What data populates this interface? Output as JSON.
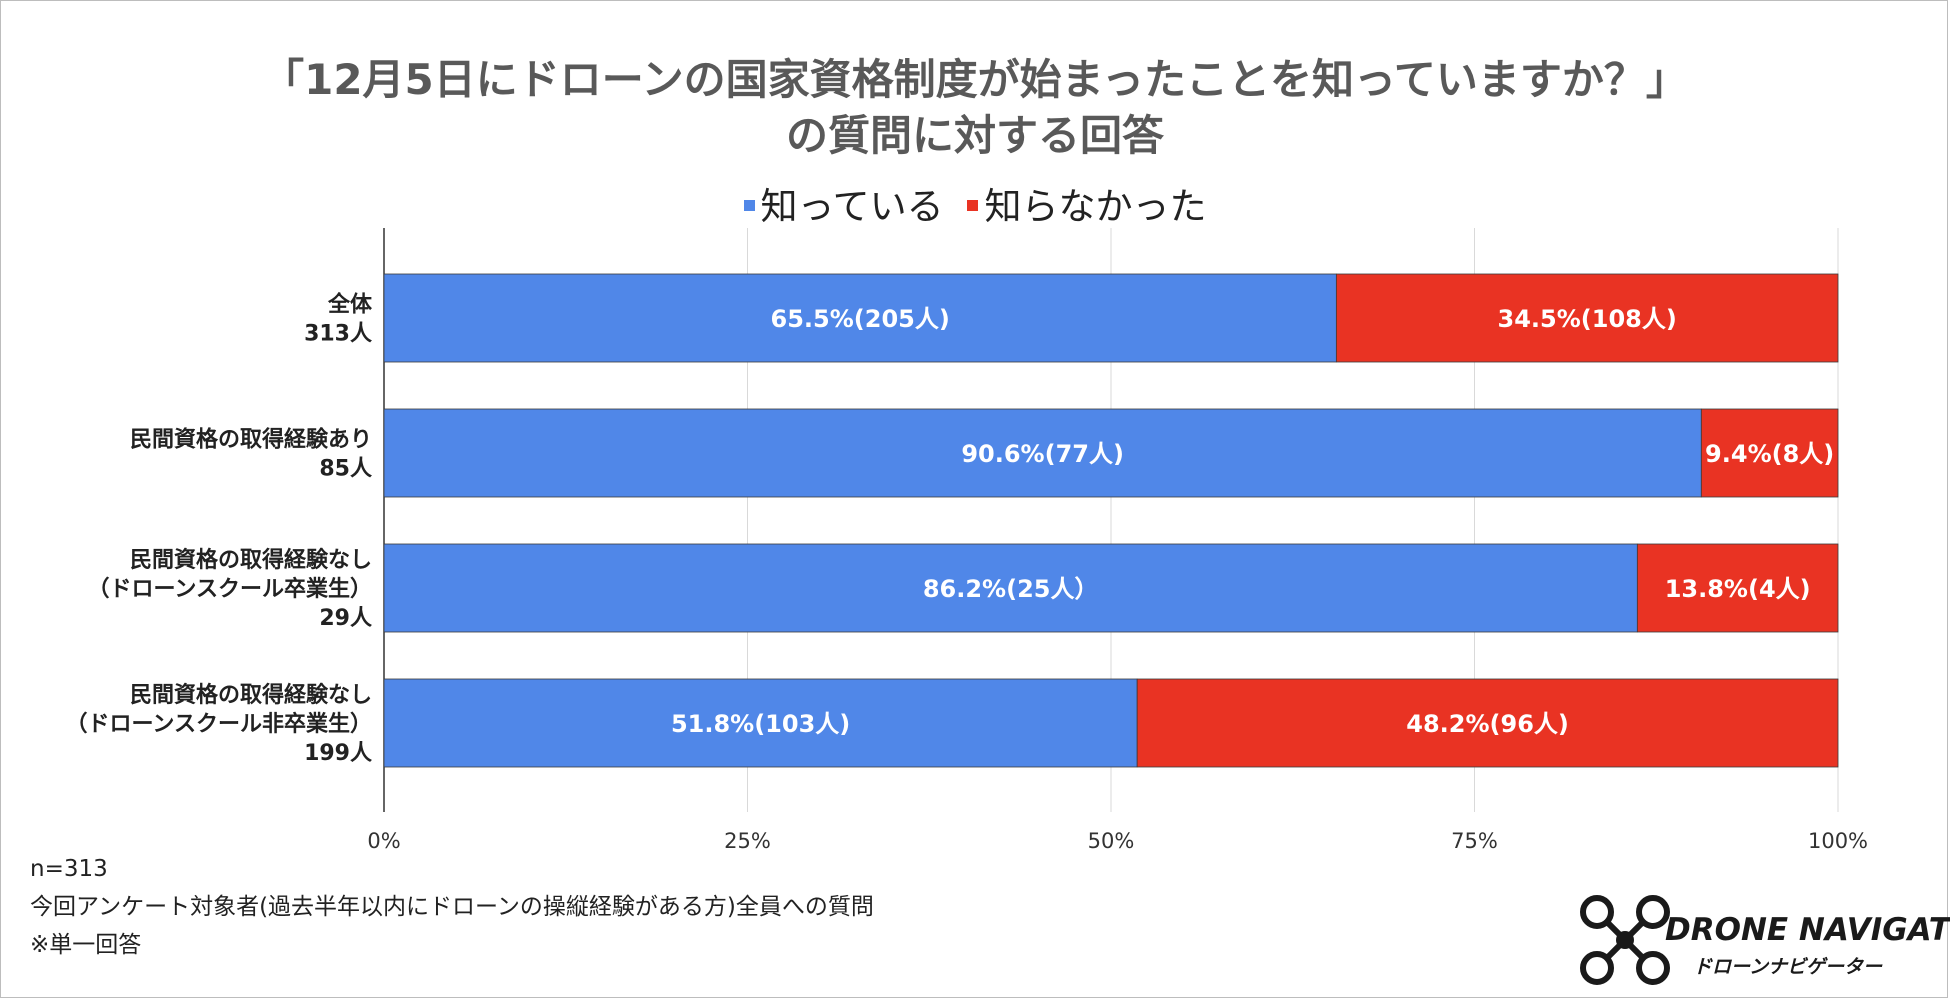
{
  "chart_data": {
    "type": "bar",
    "orientation": "horizontal",
    "stacked": true,
    "title": "「12月5日にドローンの国家資格制度が始まったことを知っていますか？」の質問に対する回答",
    "title_lines": [
      "「12月5日にドローンの国家資格制度が始まったことを知っていますか？」",
      "の質問に対する回答"
    ],
    "legend_position": "top",
    "grid": true,
    "xlim": [
      0,
      100
    ],
    "x_ticks": [
      "0%",
      "25%",
      "50%",
      "75%",
      "100%"
    ],
    "categories": [
      {
        "lines": [
          "全体",
          "313人"
        ]
      },
      {
        "lines": [
          "民間資格の取得経験あり",
          "85人"
        ]
      },
      {
        "lines": [
          "民間資格の取得経験なし",
          "（ドローンスクール卒業生）",
          "29人"
        ]
      },
      {
        "lines": [
          "民間資格の取得経験なし",
          "（ドローンスクール非卒業生）",
          "199人"
        ]
      }
    ],
    "series": [
      {
        "name": "知っている",
        "color": "#5087e8",
        "values": [
          65.5,
          90.6,
          86.2,
          51.8
        ],
        "labels": [
          "65.5%(205人)",
          "90.6%(77人)",
          "86.2%(25人）",
          "51.8%(103人)"
        ]
      },
      {
        "name": "知らなかった",
        "color": "#e93323",
        "values": [
          34.5,
          9.4,
          13.8,
          48.2
        ],
        "labels": [
          "34.5%(108人)",
          "9.4%(8人)",
          "13.8%(4人)",
          "48.2%(96人)"
        ]
      }
    ]
  },
  "notes": [
    "n=313",
    "今回アンケート対象者(過去半年以内にドローンの操縦経験がある方)全員への質問",
    "※単一回答"
  ],
  "logo": {
    "main": "DRONE NAVIGATOR",
    "sub": "ドローンナビゲーター"
  }
}
